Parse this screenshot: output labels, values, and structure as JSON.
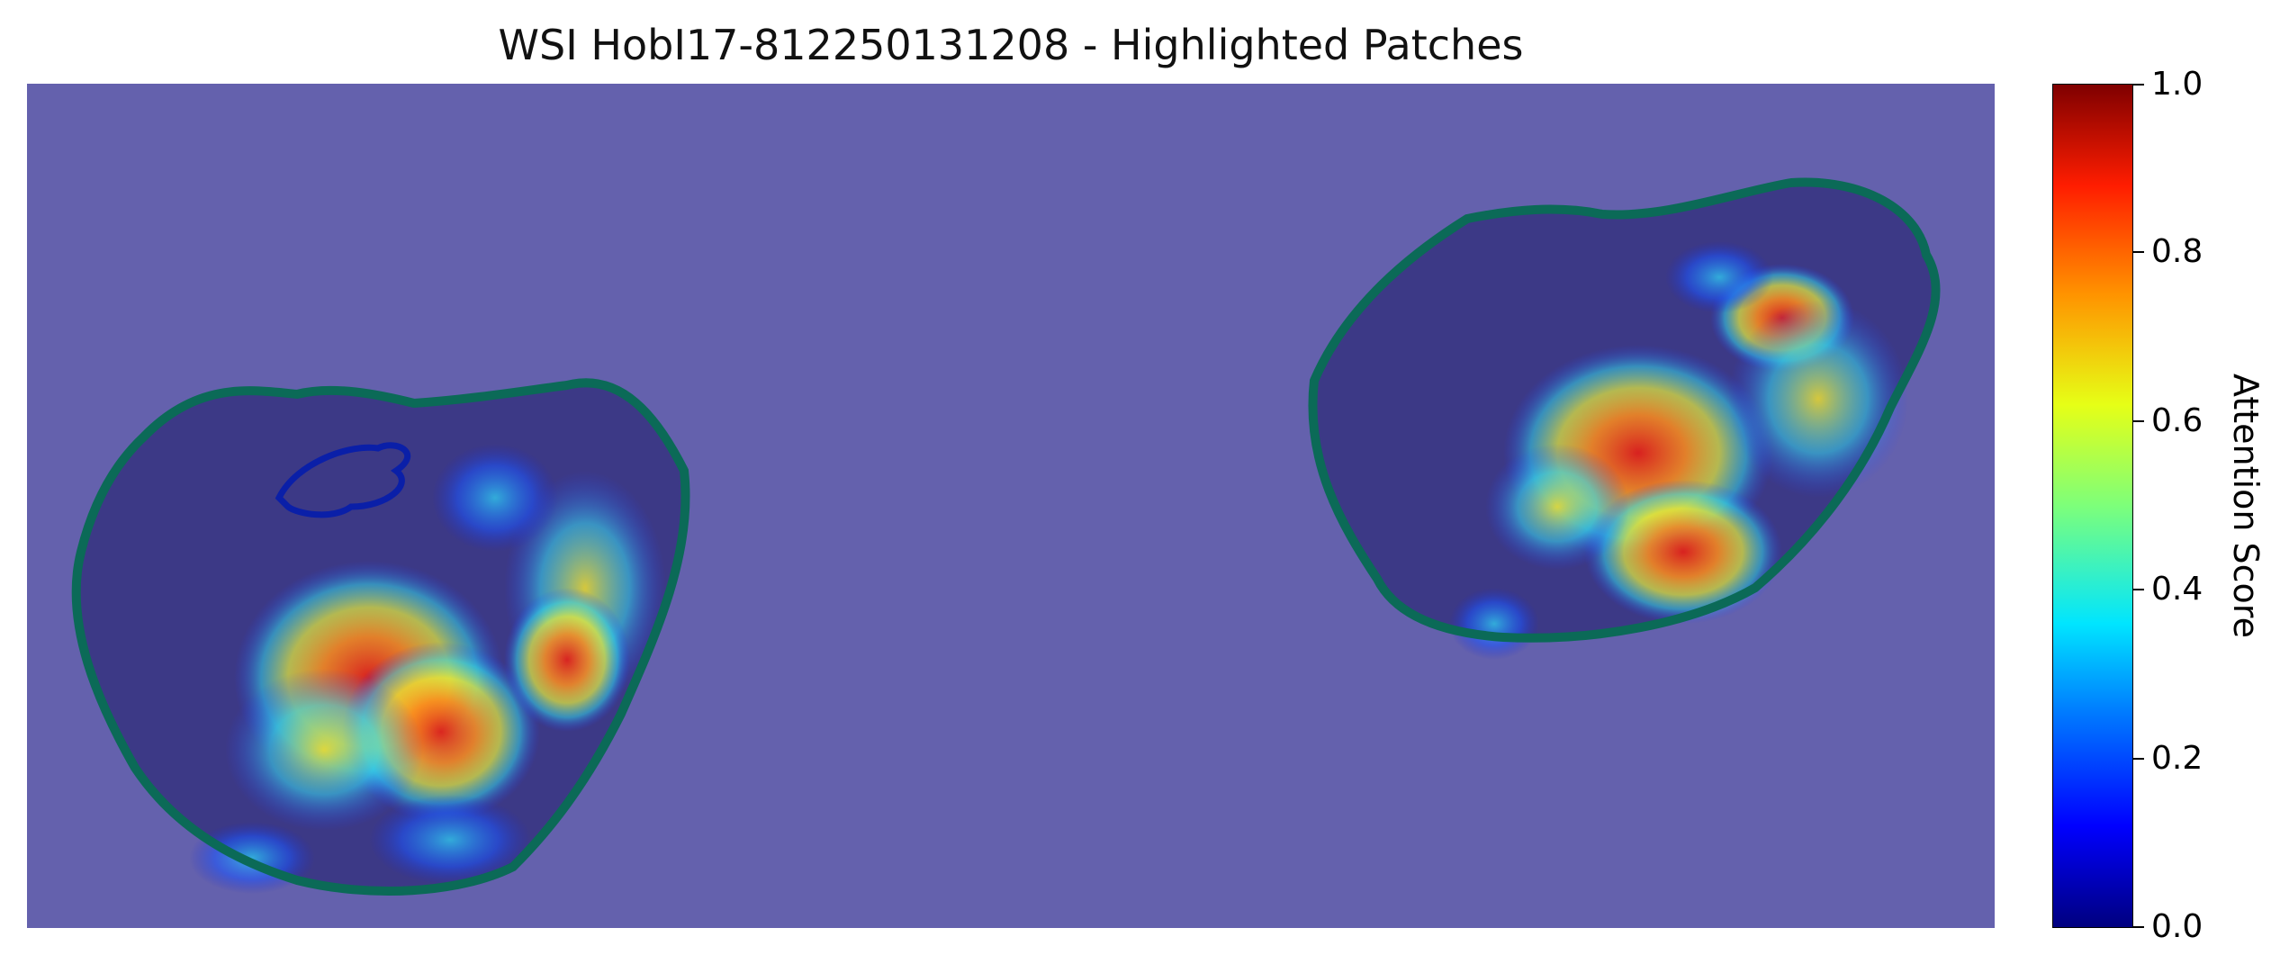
{
  "figure": {
    "title": "WSI HobI17-812250131208 - Highlighted Patches",
    "colorbar": {
      "label": "Attention Score",
      "colormap": "jet",
      "range": [
        0.0,
        1.0
      ],
      "ticks": [
        "0.0",
        "0.2",
        "0.4",
        "0.6",
        "0.8",
        "1.0"
      ]
    }
  },
  "colors": {
    "background_overlay": "#6461ad",
    "tissue_outline": "#0b6a57",
    "annotation_outline": "#0a1fa8"
  },
  "chart_data": {
    "type": "heatmap",
    "title": "WSI HobI17-812250131208 - Highlighted Patches",
    "colorbar_label": "Attention Score",
    "vmin": 0.0,
    "vmax": 1.0,
    "colormap": "jet",
    "regions": [
      {
        "name": "tissue section left",
        "max_attention": 1.0
      },
      {
        "name": "tissue section right",
        "max_attention": 1.0
      }
    ]
  }
}
